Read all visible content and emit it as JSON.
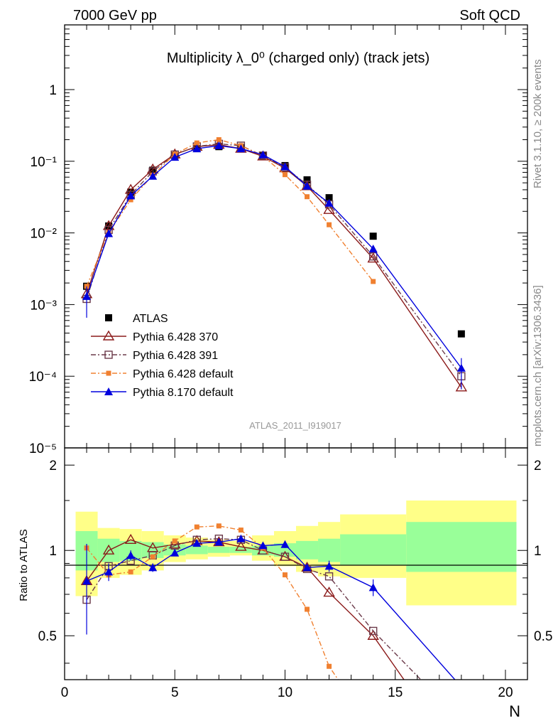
{
  "header": {
    "left": "7000 GeV pp",
    "right": "Soft QCD"
  },
  "side": {
    "rivet": "Rivet 3.1.10, ≥ 200k events",
    "mcplots": "mcplots.cern.ch [arXiv:1306.3436]"
  },
  "colors": {
    "ATLAS": "#000000",
    "Pythia 6.428 370": "#8b1a1a",
    "Pythia 6.428 391": "#6b3a4a",
    "Pythia 6.428 default": "#f08030",
    "Pythia 8.170 default": "#0000dd",
    "band_inner": "#99ff99",
    "band_outer": "#ffff88"
  },
  "chart_data": [
    {
      "type": "line",
      "title": "Multiplicity λ_0⁰ (charged only) (track jets)",
      "annotation": "ATLAS_2011_I919017",
      "xlabel": "",
      "ylabel": "",
      "yscale": "log",
      "xlim": [
        0,
        21
      ],
      "ylim": [
        1e-05,
        8
      ],
      "ytick_labels": [
        "1",
        "10⁻¹",
        "10⁻²",
        "10⁻³",
        "10⁻⁴",
        "10⁻⁵"
      ],
      "legend_position": "lower-left",
      "x": [
        1,
        2,
        3,
        4,
        5,
        6,
        7,
        8,
        9,
        10,
        11,
        12,
        14,
        18
      ],
      "series": [
        {
          "name": "ATLAS",
          "marker": "square",
          "values": [
            0.0018,
            0.0125,
            0.037,
            0.075,
            0.12,
            0.15,
            0.16,
            0.155,
            0.12,
            0.087,
            0.055,
            0.031,
            0.009,
            0.00039
          ]
        },
        {
          "name": "Pythia 6.428 370",
          "marker": "triangle-open",
          "line": "solid",
          "values": [
            0.0014,
            0.0125,
            0.04,
            0.077,
            0.125,
            0.16,
            0.17,
            0.15,
            0.117,
            0.08,
            0.045,
            0.021,
            0.0044,
            7e-05
          ]
        },
        {
          "name": "Pythia 6.428 391",
          "marker": "square-open",
          "line": "dashdot",
          "values": [
            0.0012,
            0.011,
            0.034,
            0.072,
            0.124,
            0.161,
            0.175,
            0.165,
            0.12,
            0.082,
            0.047,
            0.025,
            0.0047,
            0.0001
          ]
        },
        {
          "name": "Pythia 6.428 default",
          "marker": "square-small",
          "line": "dashdot",
          "values": [
            0.0018,
            0.01,
            0.029,
            0.064,
            0.126,
            0.18,
            0.2,
            0.165,
            0.118,
            0.065,
            0.032,
            0.013,
            0.0021,
            null
          ]
        },
        {
          "name": "Pythia 8.170 default",
          "marker": "triangle",
          "line": "solid",
          "values": [
            0.0013,
            0.0098,
            0.033,
            0.062,
            0.114,
            0.15,
            0.165,
            0.15,
            0.123,
            0.084,
            0.045,
            0.026,
            0.006,
            0.00013
          ]
        }
      ]
    },
    {
      "type": "line",
      "xlabel": "N",
      "ylabel": "Ratio to ATLAS",
      "xlim": [
        0,
        21
      ],
      "ylim": [
        0.35,
        2.3
      ],
      "x_ticks": [
        0,
        5,
        10,
        15,
        20
      ],
      "y_ticks": [
        0.5,
        1,
        2
      ],
      "reference_line": 1,
      "bands": {
        "bins": [
          [
            0.5,
            1.5
          ],
          [
            1.5,
            2.5
          ],
          [
            2.5,
            3.5
          ],
          [
            3.5,
            4.5
          ],
          [
            4.5,
            5.5
          ],
          [
            5.5,
            6.5
          ],
          [
            6.5,
            7.5
          ],
          [
            7.5,
            8.5
          ],
          [
            8.5,
            9.5
          ],
          [
            9.5,
            10.5
          ],
          [
            10.5,
            11.5
          ],
          [
            11.5,
            12.5
          ],
          [
            12.5,
            15.5
          ],
          [
            15.5,
            20.5
          ]
        ],
        "inner": [
          [
            0.85,
            1.17
          ],
          [
            0.91,
            1.1
          ],
          [
            0.92,
            1.08
          ],
          [
            0.94,
            1.07
          ],
          [
            0.96,
            1.05
          ],
          [
            0.97,
            1.04
          ],
          [
            0.98,
            1.03
          ],
          [
            0.98,
            1.03
          ],
          [
            0.96,
            1.04
          ],
          [
            0.95,
            1.06
          ],
          [
            0.93,
            1.08
          ],
          [
            0.91,
            1.1
          ],
          [
            0.89,
            1.14
          ],
          [
            0.84,
            1.26
          ]
        ],
        "outer": [
          [
            0.69,
            1.37
          ],
          [
            0.8,
            1.2
          ],
          [
            0.82,
            1.19
          ],
          [
            0.85,
            1.17
          ],
          [
            0.91,
            1.13
          ],
          [
            0.93,
            1.11
          ],
          [
            0.95,
            1.09
          ],
          [
            0.96,
            1.08
          ],
          [
            0.92,
            1.13
          ],
          [
            0.88,
            1.17
          ],
          [
            0.84,
            1.22
          ],
          [
            0.81,
            1.26
          ],
          [
            0.8,
            1.34
          ],
          [
            0.64,
            1.5
          ]
        ]
      },
      "x": [
        1,
        2,
        3,
        4,
        5,
        6,
        7,
        8,
        9,
        10,
        11,
        12,
        14,
        18
      ],
      "series": [
        {
          "name": "Pythia 6.428 370",
          "values": [
            0.78,
            1.0,
            1.09,
            1.02,
            1.05,
            1.08,
            1.07,
            1.03,
            1.0,
            0.95,
            0.87,
            0.71,
            0.5,
            0.18
          ]
        },
        {
          "name": "Pythia 6.428 391",
          "values": [
            0.67,
            0.88,
            0.92,
            0.96,
            1.04,
            1.09,
            1.1,
            1.09,
            1.0,
            0.95,
            0.86,
            0.81,
            0.52,
            0.25
          ]
        },
        {
          "name": "Pythia 6.428 default",
          "values": [
            1.02,
            0.82,
            0.84,
            0.95,
            1.08,
            1.21,
            1.22,
            1.18,
            1.02,
            0.82,
            0.62,
            0.39,
            0.23,
            null
          ]
        },
        {
          "name": "Pythia 8.170 default",
          "values": [
            0.78,
            0.84,
            0.96,
            0.87,
            0.98,
            1.06,
            1.07,
            1.1,
            1.04,
            1.05,
            0.87,
            0.88,
            0.74,
            0.33
          ]
        }
      ]
    }
  ]
}
